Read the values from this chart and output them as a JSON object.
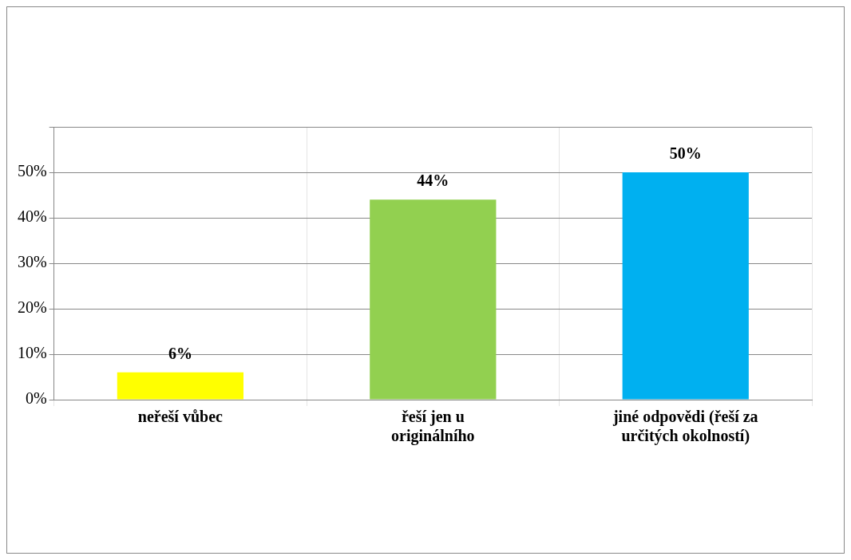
{
  "chart_data": {
    "type": "bar",
    "categories": [
      "neřeší vůbec",
      "řeší jen u originálního",
      "jiné odpovědi (řeší za určitých okolností)"
    ],
    "values": [
      6,
      44,
      50
    ],
    "colors": [
      "#ffff00",
      "#92d050",
      "#00b0f0"
    ],
    "value_labels": [
      "6%",
      "44%",
      "50%"
    ],
    "ylim": [
      0,
      60
    ],
    "yticks": [
      {
        "value": 0,
        "label": "0%"
      },
      {
        "value": 10,
        "label": "10%"
      },
      {
        "value": 20,
        "label": "20%"
      },
      {
        "value": 30,
        "label": "30%"
      },
      {
        "value": 40,
        "label": "40%"
      },
      {
        "value": 50,
        "label": "50%"
      },
      {
        "value": 60,
        "label": null
      }
    ],
    "grid": true,
    "legend": false
  }
}
